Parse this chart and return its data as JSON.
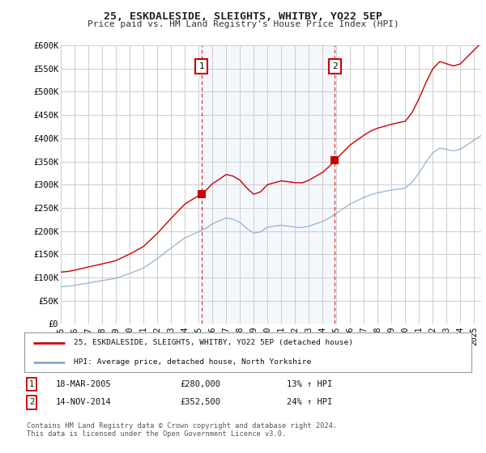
{
  "title": "25, ESKDALESIDE, SLEIGHTS, WHITBY, YO22 5EP",
  "subtitle": "Price paid vs. HM Land Registry's House Price Index (HPI)",
  "background_color": "#ffffff",
  "plot_bg_color": "#ffffff",
  "ylim": [
    0,
    600000
  ],
  "yticks": [
    0,
    50000,
    100000,
    150000,
    200000,
    250000,
    300000,
    350000,
    400000,
    450000,
    500000,
    550000,
    600000
  ],
  "ytick_labels": [
    "£0",
    "£50K",
    "£100K",
    "£150K",
    "£200K",
    "£250K",
    "£300K",
    "£350K",
    "£400K",
    "£450K",
    "£500K",
    "£550K",
    "£600K"
  ],
  "xlim_start": 1995.0,
  "xlim_end": 2025.5,
  "marker1_x": 2005.21,
  "marker1_y": 280000,
  "marker2_x": 2014.88,
  "marker2_y": 352500,
  "legend_line1": "25, ESKDALESIDE, SLEIGHTS, WHITBY, YO22 5EP (detached house)",
  "legend_line2": "HPI: Average price, detached house, North Yorkshire",
  "table_row1": [
    "1",
    "18-MAR-2005",
    "£280,000",
    "13% ↑ HPI"
  ],
  "table_row2": [
    "2",
    "14-NOV-2014",
    "£352,500",
    "24% ↑ HPI"
  ],
  "footer": "Contains HM Land Registry data © Crown copyright and database right 2024.\nThis data is licensed under the Open Government Licence v3.0.",
  "red_color": "#cc0000",
  "blue_color": "#88aacc",
  "grid_color": "#cccccc"
}
